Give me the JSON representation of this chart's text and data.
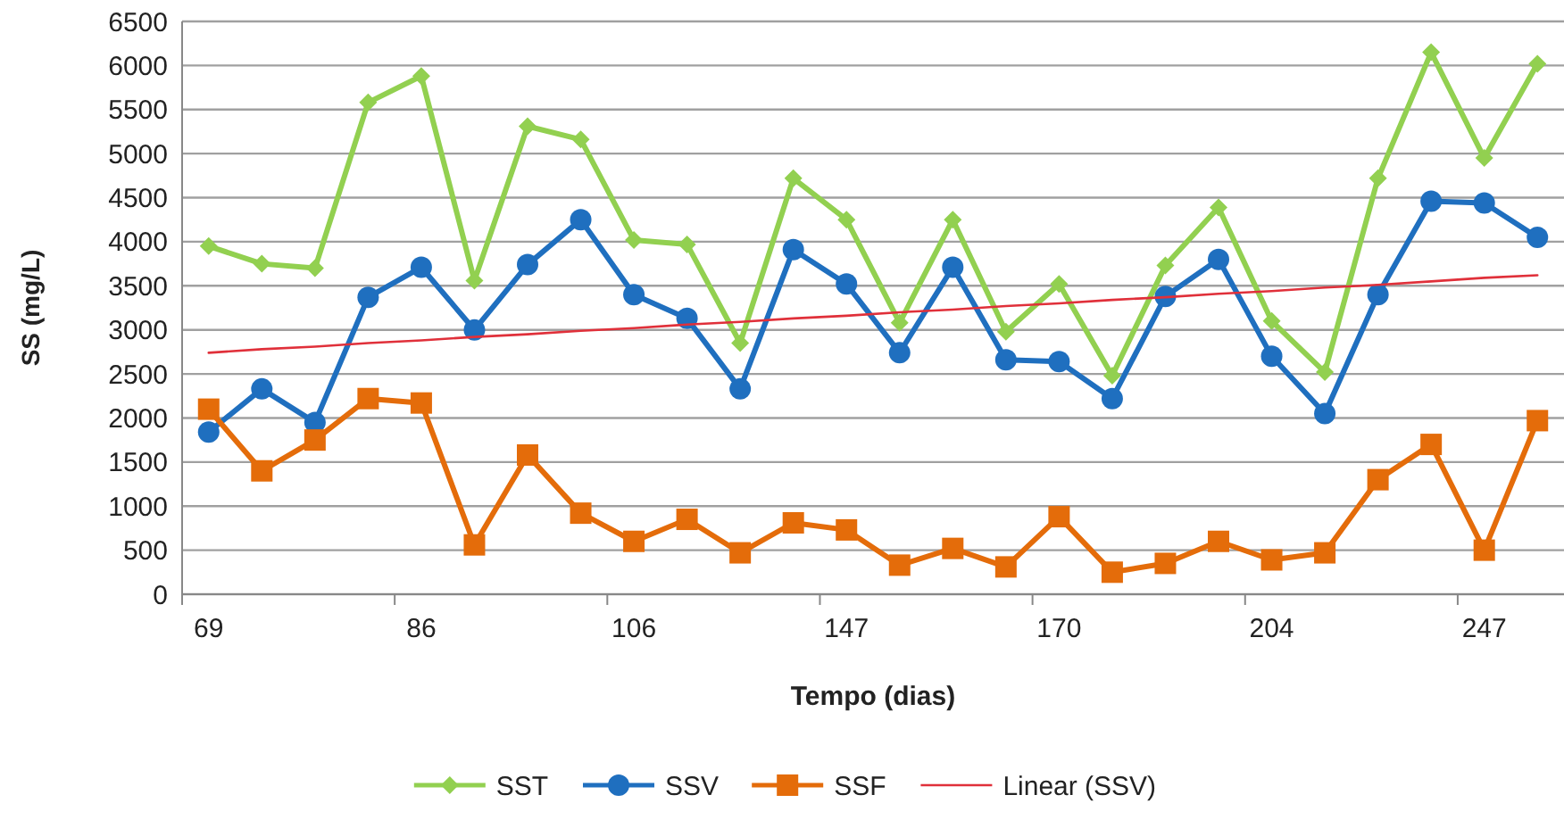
{
  "chart_data": {
    "type": "line",
    "xlabel": "Tempo (dias)",
    "ylabel": "SS (mg/L)",
    "categories": [
      "69",
      null,
      null,
      null,
      "86",
      null,
      null,
      null,
      "106",
      null,
      null,
      null,
      "147",
      null,
      null,
      null,
      "170",
      null,
      null,
      null,
      "204",
      null,
      null,
      null,
      "247",
      null
    ],
    "series": [
      {
        "name": "SST",
        "color": "#92d050",
        "marker": "diamond",
        "values": [
          3950,
          3750,
          3700,
          5580,
          5880,
          3560,
          5310,
          5160,
          4020,
          3970,
          2850,
          4720,
          4250,
          3080,
          4250,
          2980,
          3520,
          2480,
          3730,
          4390,
          3100,
          2520,
          4720,
          6150,
          4950,
          6020
        ]
      },
      {
        "name": "SSV",
        "color": "#1f6fbf",
        "marker": "circle",
        "values": [
          1840,
          2330,
          1950,
          3370,
          3710,
          3000,
          3740,
          4250,
          3400,
          3130,
          2330,
          3910,
          3520,
          2740,
          3710,
          2660,
          2640,
          2220,
          3380,
          3800,
          2700,
          2050,
          3400,
          4460,
          4440,
          4050
        ]
      },
      {
        "name": "SSF",
        "color": "#e46c0a",
        "marker": "square",
        "values": [
          2100,
          1400,
          1750,
          2220,
          2170,
          560,
          1580,
          920,
          600,
          850,
          470,
          810,
          730,
          330,
          520,
          310,
          880,
          250,
          350,
          600,
          390,
          470,
          1300,
          1700,
          500,
          1970
        ]
      },
      {
        "name": "Linear (SSV)",
        "color": "#e0303a",
        "marker": "none",
        "values": [
          2740,
          2780,
          2810,
          2850,
          2880,
          2920,
          2950,
          2990,
          3020,
          3060,
          3090,
          3130,
          3160,
          3200,
          3230,
          3270,
          3300,
          3340,
          3370,
          3410,
          3440,
          3480,
          3510,
          3550,
          3590,
          3620
        ]
      }
    ],
    "ylim": [
      0,
      6500
    ],
    "yticks": [
      0,
      500,
      1000,
      1500,
      2000,
      2500,
      3000,
      3500,
      4000,
      4500,
      5000,
      5500,
      6000,
      6500
    ],
    "grid": "y",
    "legend": "bottom"
  }
}
